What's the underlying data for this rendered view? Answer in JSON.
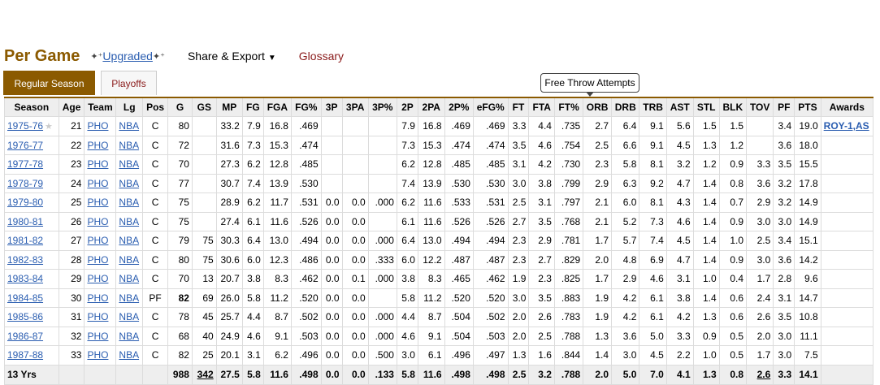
{
  "header": {
    "title": "Per Game",
    "upgraded_label": "Upgraded",
    "share_label": "Share & Export",
    "glossary_label": "Glossary"
  },
  "tabs": [
    {
      "label": "Regular Season",
      "active": true
    },
    {
      "label": "Playoffs",
      "active": false
    }
  ],
  "tooltip": "Free Throw Attempts",
  "columns": [
    "Season",
    "Age",
    "Team",
    "Lg",
    "Pos",
    "G",
    "GS",
    "MP",
    "FG",
    "FGA",
    "FG%",
    "3P",
    "3PA",
    "3P%",
    "2P",
    "2PA",
    "2P%",
    "eFG%",
    "FT",
    "FTA",
    "FT%",
    "ORB",
    "DRB",
    "TRB",
    "AST",
    "STL",
    "BLK",
    "TOV",
    "PF",
    "PTS",
    "Awards"
  ],
  "rows": [
    [
      "1975-76",
      "21",
      "PHO",
      "NBA",
      "C",
      "80",
      "",
      "33.2",
      "7.9",
      "16.8",
      ".469",
      "",
      "",
      "",
      "7.9",
      "16.8",
      ".469",
      ".469",
      "3.3",
      "4.4",
      ".735",
      "2.7",
      "6.4",
      "9.1",
      "5.6",
      "1.5",
      "1.5",
      "",
      "3.4",
      "19.0",
      "ROY-1,AS"
    ],
    [
      "1976-77",
      "22",
      "PHO",
      "NBA",
      "C",
      "72",
      "",
      "31.6",
      "7.3",
      "15.3",
      ".474",
      "",
      "",
      "",
      "7.3",
      "15.3",
      ".474",
      ".474",
      "3.5",
      "4.6",
      ".754",
      "2.5",
      "6.6",
      "9.1",
      "4.5",
      "1.3",
      "1.2",
      "",
      "3.6",
      "18.0",
      ""
    ],
    [
      "1977-78",
      "23",
      "PHO",
      "NBA",
      "C",
      "70",
      "",
      "27.3",
      "6.2",
      "12.8",
      ".485",
      "",
      "",
      "",
      "6.2",
      "12.8",
      ".485",
      ".485",
      "3.1",
      "4.2",
      ".730",
      "2.3",
      "5.8",
      "8.1",
      "3.2",
      "1.2",
      "0.9",
      "3.3",
      "3.5",
      "15.5",
      ""
    ],
    [
      "1978-79",
      "24",
      "PHO",
      "NBA",
      "C",
      "77",
      "",
      "30.7",
      "7.4",
      "13.9",
      ".530",
      "",
      "",
      "",
      "7.4",
      "13.9",
      ".530",
      ".530",
      "3.0",
      "3.8",
      ".799",
      "2.9",
      "6.3",
      "9.2",
      "4.7",
      "1.4",
      "0.8",
      "3.6",
      "3.2",
      "17.8",
      ""
    ],
    [
      "1979-80",
      "25",
      "PHO",
      "NBA",
      "C",
      "75",
      "",
      "28.9",
      "6.2",
      "11.7",
      ".531",
      "0.0",
      "0.0",
      ".000",
      "6.2",
      "11.6",
      ".533",
      ".531",
      "2.5",
      "3.1",
      ".797",
      "2.1",
      "6.0",
      "8.1",
      "4.3",
      "1.4",
      "0.7",
      "2.9",
      "3.2",
      "14.9",
      ""
    ],
    [
      "1980-81",
      "26",
      "PHO",
      "NBA",
      "C",
      "75",
      "",
      "27.4",
      "6.1",
      "11.6",
      ".526",
      "0.0",
      "0.0",
      "",
      "6.1",
      "11.6",
      ".526",
      ".526",
      "2.7",
      "3.5",
      ".768",
      "2.1",
      "5.2",
      "7.3",
      "4.6",
      "1.4",
      "0.9",
      "3.0",
      "3.0",
      "14.9",
      ""
    ],
    [
      "1981-82",
      "27",
      "PHO",
      "NBA",
      "C",
      "79",
      "75",
      "30.3",
      "6.4",
      "13.0",
      ".494",
      "0.0",
      "0.0",
      ".000",
      "6.4",
      "13.0",
      ".494",
      ".494",
      "2.3",
      "2.9",
      ".781",
      "1.7",
      "5.7",
      "7.4",
      "4.5",
      "1.4",
      "1.0",
      "2.5",
      "3.4",
      "15.1",
      ""
    ],
    [
      "1982-83",
      "28",
      "PHO",
      "NBA",
      "C",
      "80",
      "75",
      "30.6",
      "6.0",
      "12.3",
      ".486",
      "0.0",
      "0.0",
      ".333",
      "6.0",
      "12.2",
      ".487",
      ".487",
      "2.3",
      "2.7",
      ".829",
      "2.0",
      "4.8",
      "6.9",
      "4.7",
      "1.4",
      "0.9",
      "3.0",
      "3.6",
      "14.2",
      ""
    ],
    [
      "1983-84",
      "29",
      "PHO",
      "NBA",
      "C",
      "70",
      "13",
      "20.7",
      "3.8",
      "8.3",
      ".462",
      "0.0",
      "0.1",
      ".000",
      "3.8",
      "8.3",
      ".465",
      ".462",
      "1.9",
      "2.3",
      ".825",
      "1.7",
      "2.9",
      "4.6",
      "3.1",
      "1.0",
      "0.4",
      "1.7",
      "2.8",
      "9.6",
      ""
    ],
    [
      "1984-85",
      "30",
      "PHO",
      "NBA",
      "PF",
      "82",
      "69",
      "26.0",
      "5.8",
      "11.2",
      ".520",
      "0.0",
      "0.0",
      "",
      "5.8",
      "11.2",
      ".520",
      ".520",
      "3.0",
      "3.5",
      ".883",
      "1.9",
      "4.2",
      "6.1",
      "3.8",
      "1.4",
      "0.6",
      "2.4",
      "3.1",
      "14.7",
      ""
    ],
    [
      "1985-86",
      "31",
      "PHO",
      "NBA",
      "C",
      "78",
      "45",
      "25.7",
      "4.4",
      "8.7",
      ".502",
      "0.0",
      "0.0",
      ".000",
      "4.4",
      "8.7",
      ".504",
      ".502",
      "2.0",
      "2.6",
      ".783",
      "1.9",
      "4.2",
      "6.1",
      "4.2",
      "1.3",
      "0.6",
      "2.6",
      "3.5",
      "10.8",
      ""
    ],
    [
      "1986-87",
      "32",
      "PHO",
      "NBA",
      "C",
      "68",
      "40",
      "24.9",
      "4.6",
      "9.1",
      ".503",
      "0.0",
      "0.0",
      ".000",
      "4.6",
      "9.1",
      ".504",
      ".503",
      "2.0",
      "2.5",
      ".788",
      "1.3",
      "3.6",
      "5.0",
      "3.3",
      "0.9",
      "0.5",
      "2.0",
      "3.0",
      "11.1",
      ""
    ],
    [
      "1987-88",
      "33",
      "PHO",
      "NBA",
      "C",
      "82",
      "25",
      "20.1",
      "3.1",
      "6.2",
      ".496",
      "0.0",
      "0.0",
      ".500",
      "3.0",
      "6.1",
      ".496",
      ".497",
      "1.3",
      "1.6",
      ".844",
      "1.4",
      "3.0",
      "4.5",
      "2.2",
      "1.0",
      "0.5",
      "1.7",
      "3.0",
      "7.5",
      ""
    ]
  ],
  "totals": [
    "13 Yrs",
    "",
    "",
    "",
    "",
    "988",
    "342",
    "27.5",
    "5.8",
    "11.6",
    ".498",
    "0.0",
    "0.0",
    ".133",
    "5.8",
    "11.6",
    ".498",
    ".498",
    "2.5",
    "3.2",
    ".788",
    "2.0",
    "5.0",
    "7.0",
    "4.1",
    "1.3",
    "0.8",
    "2.6",
    "3.3",
    "14.1",
    ""
  ]
}
